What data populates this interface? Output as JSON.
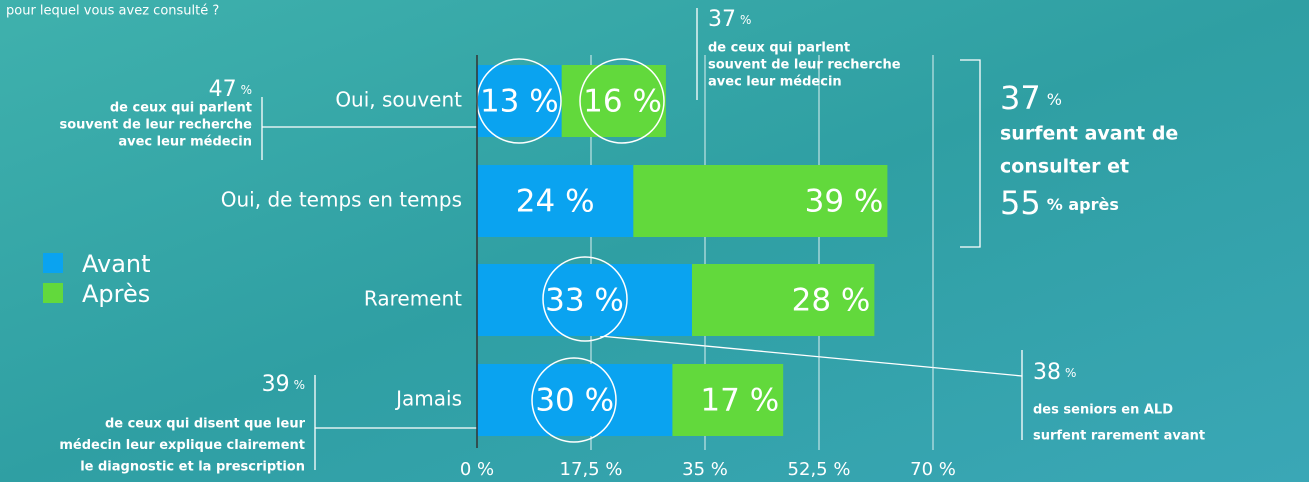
{
  "chart_data": {
    "type": "stacked_barh",
    "title": "pour lequel vous avez consulté ?",
    "categories": [
      "Oui, souvent",
      "Oui, de temps en temps",
      "Rarement",
      "Jamais"
    ],
    "series": [
      {
        "name": "Avant",
        "color": "#0aa3f0",
        "values": [
          13,
          24,
          33,
          30
        ],
        "value_labels": [
          "13 %",
          "24 %",
          "33 %",
          "30 %"
        ]
      },
      {
        "name": "Après",
        "color": "#62d93c",
        "values": [
          16,
          39,
          28,
          17
        ],
        "value_labels": [
          "16 %",
          "39 %",
          "28 %",
          "17 %"
        ]
      }
    ],
    "xlim": [
      0,
      70
    ],
    "xticks": [
      {
        "value": 0,
        "label": "0 %"
      },
      {
        "value": 17.5,
        "label": "17,5 %"
      },
      {
        "value": 35,
        "label": "35 %"
      },
      {
        "value": 52.5,
        "label": "52,5 %"
      },
      {
        "value": 70,
        "label": "70 %"
      }
    ],
    "grid": true,
    "legend": "left",
    "annotations": [
      {
        "number": "47",
        "unit": "%",
        "lines": [
          "de ceux qui parlent",
          "souvent de leur recherche",
          "avec leur médecin"
        ]
      },
      {
        "number": "37",
        "unit": "%",
        "lines": [
          "de ceux qui parlent",
          "souvent de leur recherche",
          "avec leur médecin"
        ]
      },
      {
        "number": "37",
        "unit": "%",
        "lines": [
          "surfent avant de",
          "consulter et"
        ],
        "number2": "55",
        "unit2": "% après"
      },
      {
        "number": "38",
        "unit": "%",
        "lines": [
          "des seniors en ALD",
          "surfent rarement avant"
        ]
      },
      {
        "number": "39",
        "unit": "%",
        "lines": [
          "de ceux qui disent que leur",
          "médecin leur explique clairement",
          "le diagnostic et la prescription"
        ]
      }
    ]
  }
}
